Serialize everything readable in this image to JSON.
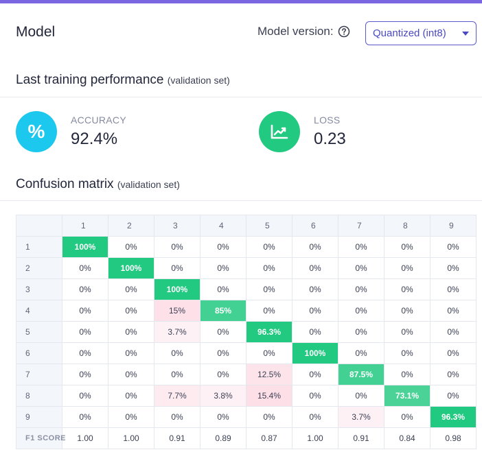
{
  "header": {
    "title": "Model",
    "version_label": "Model version:",
    "version_value": "Quantized (int8)"
  },
  "performance": {
    "title": "Last training performance",
    "subtitle": "(validation set)",
    "accuracy": {
      "label": "ACCURACY",
      "value": "92.4%",
      "icon_text": "%",
      "color": "#1cc8ee"
    },
    "loss": {
      "label": "LOSS",
      "value": "0.23",
      "icon": "trend-chart-icon",
      "color": "#22c980"
    }
  },
  "confusion": {
    "title": "Confusion matrix",
    "subtitle": "(validation set)",
    "columns": [
      "1",
      "2",
      "3",
      "4",
      "5",
      "6",
      "7",
      "8",
      "9"
    ],
    "rows": [
      {
        "label": "1",
        "cells": [
          "100%",
          "0%",
          "0%",
          "0%",
          "0%",
          "0%",
          "0%",
          "0%",
          "0%"
        ]
      },
      {
        "label": "2",
        "cells": [
          "0%",
          "100%",
          "0%",
          "0%",
          "0%",
          "0%",
          "0%",
          "0%",
          "0%"
        ]
      },
      {
        "label": "3",
        "cells": [
          "0%",
          "0%",
          "100%",
          "0%",
          "0%",
          "0%",
          "0%",
          "0%",
          "0%"
        ]
      },
      {
        "label": "4",
        "cells": [
          "0%",
          "0%",
          "15%",
          "85%",
          "0%",
          "0%",
          "0%",
          "0%",
          "0%"
        ]
      },
      {
        "label": "5",
        "cells": [
          "0%",
          "0%",
          "3.7%",
          "0%",
          "96.3%",
          "0%",
          "0%",
          "0%",
          "0%"
        ]
      },
      {
        "label": "6",
        "cells": [
          "0%",
          "0%",
          "0%",
          "0%",
          "0%",
          "100%",
          "0%",
          "0%",
          "0%"
        ]
      },
      {
        "label": "7",
        "cells": [
          "0%",
          "0%",
          "0%",
          "0%",
          "12.5%",
          "0%",
          "87.5%",
          "0%",
          "0%"
        ]
      },
      {
        "label": "8",
        "cells": [
          "0%",
          "0%",
          "7.7%",
          "3.8%",
          "15.4%",
          "0%",
          "0%",
          "73.1%",
          "0%"
        ]
      },
      {
        "label": "9",
        "cells": [
          "0%",
          "0%",
          "0%",
          "0%",
          "0%",
          "0%",
          "3.7%",
          "0%",
          "96.3%"
        ]
      }
    ],
    "f1_label": "F1 SCORE",
    "f1_scores": [
      "1.00",
      "1.00",
      "0.91",
      "0.89",
      "0.87",
      "1.00",
      "0.91",
      "0.84",
      "0.98"
    ],
    "colors": {
      "correct": "#22c980",
      "error": "#f03e6e"
    }
  },
  "colors": {
    "accent_bar": "#7966e0",
    "primary": "#4a49c2"
  }
}
